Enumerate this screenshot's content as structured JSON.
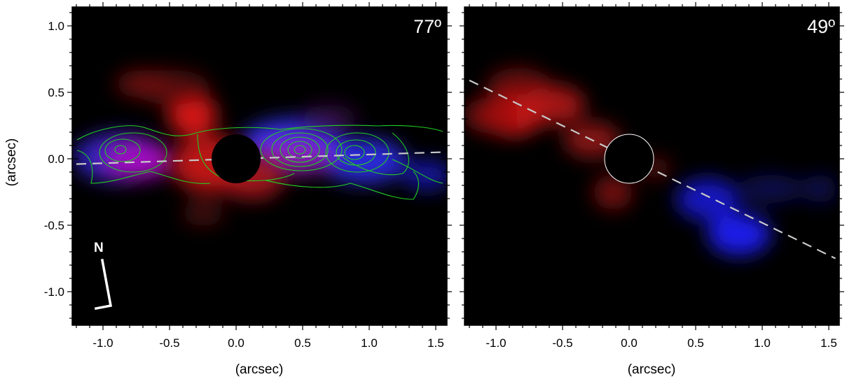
{
  "colors": {
    "background": "#000000",
    "redshift_emission": "#e01010",
    "blueshift_emission": "#1818ff",
    "contours": "#22cc22",
    "major_axis_line": "#c8c8c8",
    "north_arrow": "#ffffff"
  },
  "panels": [
    {
      "angle_label": "77º",
      "x_ticks": [
        "-1.0",
        "-0.5",
        "0.0",
        "0.5",
        "1.0",
        "1.5"
      ],
      "x_axis_title": "(arcsec)",
      "major_axis": {
        "x1": -1.2,
        "y1": -0.04,
        "x2": 1.55,
        "y2": 0.05
      },
      "north_indicator": {
        "label": "N"
      }
    },
    {
      "angle_label": "49º",
      "x_ticks": [
        "-1.0",
        "-0.5",
        "0.0",
        "0.5",
        "1.0",
        "1.5"
      ],
      "x_axis_title": "(arcsec)",
      "major_axis": {
        "x1": -1.2,
        "y1": 0.59,
        "x2": 1.55,
        "y2": -0.75
      }
    }
  ],
  "y_ticks": [
    "1.0",
    "0.5",
    "0.0",
    "-0.5",
    "-1.0"
  ],
  "y_axis_title": "(arcsec)"
}
